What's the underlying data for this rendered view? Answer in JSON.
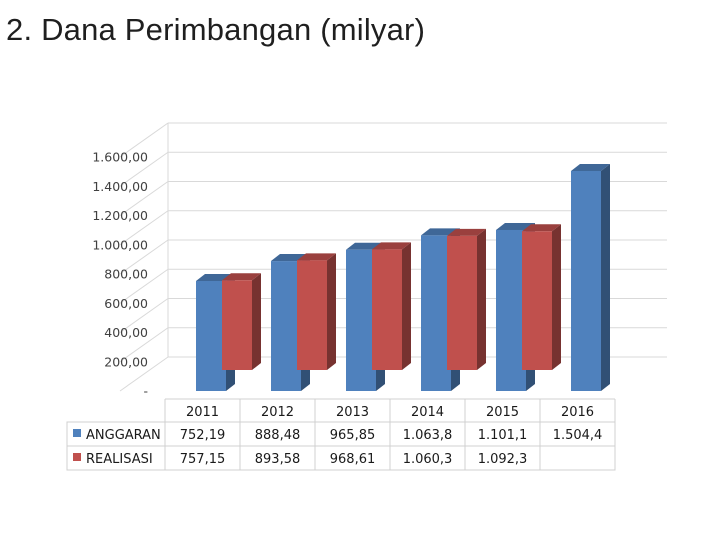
{
  "page": {
    "title": "2. Dana Perimbangan (milyar)"
  },
  "chart_data": {
    "type": "bar",
    "style": "3d-clustered-column-with-data-table",
    "categories": [
      "2011",
      "2012",
      "2013",
      "2014",
      "2015",
      "2016"
    ],
    "y_ticks": [
      "-",
      "200,00",
      "400,00",
      "600,00",
      "800,00",
      "1.000,00",
      "1.200,00",
      "1.400,00",
      "1.600,00"
    ],
    "ylim": [
      0,
      1600
    ],
    "grid": true,
    "legend": "data-table",
    "series": [
      {
        "name": "ANGGARAN",
        "color": "#4f81bd",
        "values": [
          752.19,
          888.48,
          965.85,
          1063.8,
          1101.1,
          1504.4
        ],
        "labels": [
          "752,19",
          "888,48",
          "965,85",
          "1.063,8",
          "1.101,1",
          "1.504,4"
        ]
      },
      {
        "name": "REALISASI",
        "color": "#c0504d",
        "values": [
          757.15,
          893.58,
          968.61,
          1060.3,
          1092.3,
          null
        ],
        "labels": [
          "757,15",
          "893,58",
          "968,61",
          "1.060,3",
          "1.092,3",
          ""
        ]
      }
    ]
  }
}
